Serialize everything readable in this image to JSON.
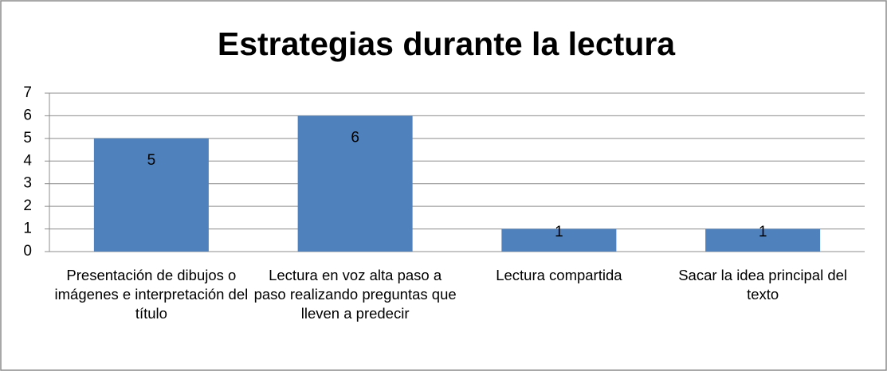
{
  "chart_data": {
    "type": "bar",
    "title": "Estrategias durante la lectura",
    "categories": [
      "Presentación de dibujos o imágenes e interpretación del título",
      "Lectura en voz alta paso a paso realizando preguntas que lleven a predecir",
      "Lectura compartida",
      "Sacar la idea principal del texto"
    ],
    "values": [
      5,
      6,
      1,
      1
    ],
    "color": "#4f81bd",
    "ylim": [
      0,
      7
    ],
    "yticks": [
      0,
      1,
      2,
      3,
      4,
      5,
      6,
      7
    ],
    "grid": true
  }
}
